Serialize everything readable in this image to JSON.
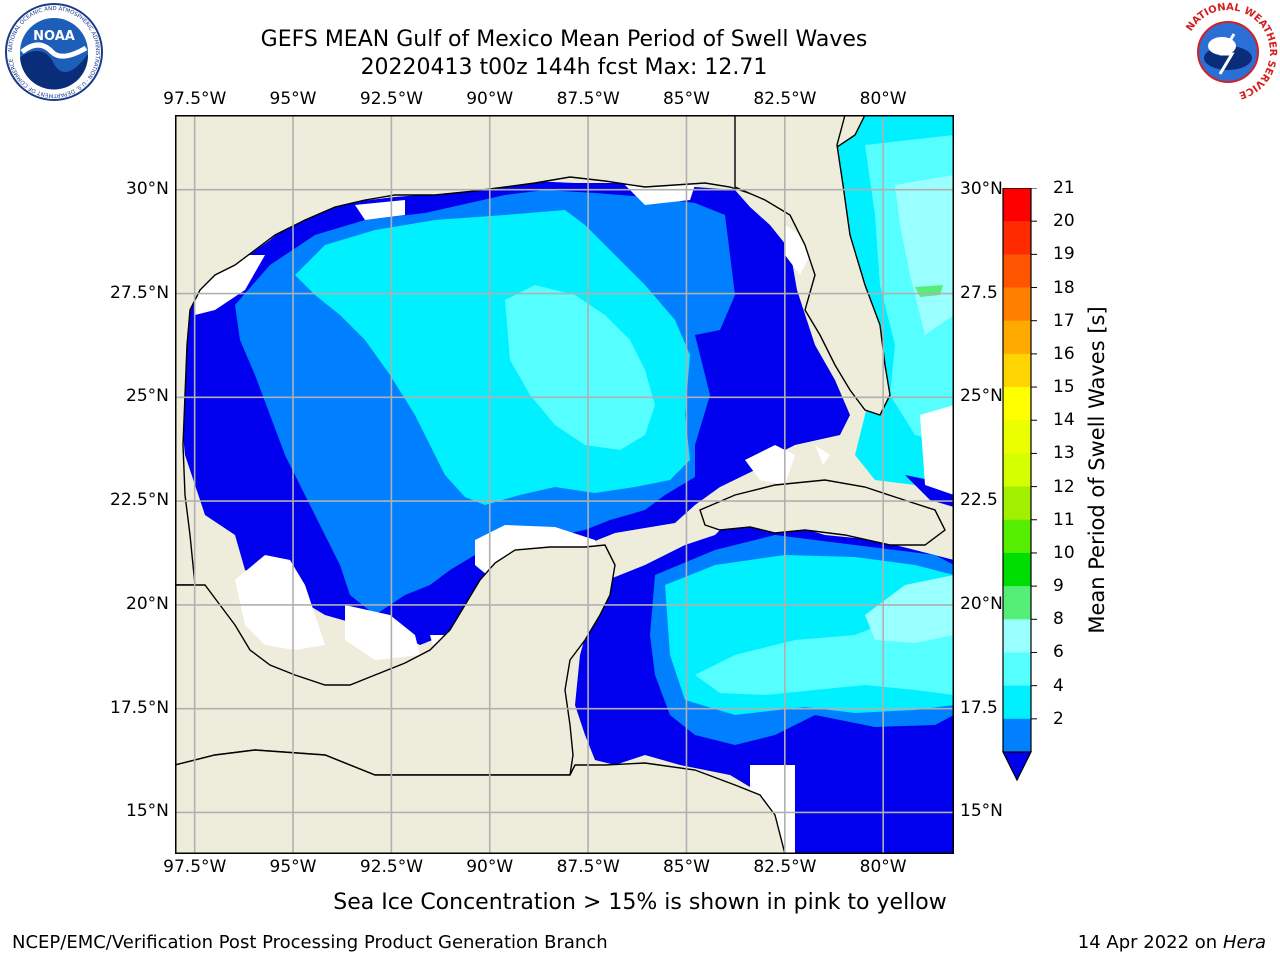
{
  "header": {
    "title": "GEFS MEAN Gulf of Mexico Mean Period of Swell Waves",
    "subtitle": "20220413 t00z 144h fcst   Max: 12.71"
  },
  "map": {
    "lon_labels": [
      "97.5°W",
      "95°W",
      "92.5°W",
      "90°W",
      "87.5°W",
      "85°W",
      "82.5°W",
      "80°W"
    ],
    "lat_labels_left": [
      "30°N",
      "27.5°N",
      "25°N",
      "22.5°N",
      "20°N",
      "17.5°N",
      "15°N"
    ],
    "lat_labels_right": [
      "30°N",
      "27.5",
      "25°N",
      "22.5",
      "20°N",
      "17.5",
      "15°N"
    ],
    "extent": {
      "lon_min": -98,
      "lon_max": -78.2,
      "lat_min": 14,
      "lat_max": 31.8
    },
    "colors": {
      "land": "#eeeddc",
      "grid": "#b0b0b0",
      "no_data": "#ffffff"
    }
  },
  "colorbar": {
    "label": "Mean Period of Swell Waves [s]",
    "ticks": [
      "21",
      "20",
      "19",
      "18",
      "17",
      "16",
      "15",
      "14",
      "13",
      "12",
      "11",
      "10",
      "9",
      "8",
      "6",
      "4",
      "2"
    ],
    "colors": [
      "#ff0000",
      "#ff2a00",
      "#ff5500",
      "#ff8000",
      "#ffaa00",
      "#ffd400",
      "#ffff00",
      "#eaff00",
      "#d4ff00",
      "#a0f000",
      "#55ee00",
      "#00dd00",
      "#55ee77",
      "#99ffff",
      "#55ffff",
      "#00f0ff",
      "#0080ff",
      "#0000ee"
    ]
  },
  "caption": "Sea Ice Concentration > 15% is shown in pink to yellow",
  "footer": {
    "left": "NCEP/EMC/Verification Post Processing Product Generation Branch",
    "right_date": "14 Apr 2022 on ",
    "right_host": "Hera"
  },
  "logos": {
    "noaa": {
      "text": "NOAA",
      "ring_text": "NATIONAL OCEANIC AND ATMOSPHERIC ADMINISTRATION · U.S. DEPARTMENT OF COMMERCE"
    },
    "nws": {
      "ring_text": "NATIONAL WEATHER SERVICE"
    }
  }
}
